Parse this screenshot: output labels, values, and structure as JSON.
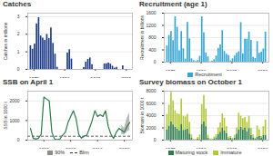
{
  "chart_data": [
    {
      "type": "bar",
      "title": "Catches",
      "ylabel": "Catches in millions",
      "color": "#1c3a87",
      "grid": true,
      "x": [
        1973,
        1974,
        1975,
        1976,
        1977,
        1978,
        1979,
        1980,
        1981,
        1982,
        1983,
        1984,
        1985,
        1986,
        1987,
        1988,
        1989,
        1990,
        1991,
        1992,
        1993,
        1994,
        1995,
        1996,
        1997,
        1998,
        1999,
        2000,
        2001,
        2002,
        2003,
        2004,
        2005,
        2006,
        2007,
        2008,
        2009,
        2010,
        2011,
        2012,
        2013,
        2014,
        2015,
        2016,
        2017,
        2018,
        2019,
        2020,
        2021
      ],
      "values": [
        1.34,
        1.15,
        1.44,
        2.59,
        2.94,
        1.9,
        1.78,
        1.65,
        1.99,
        1.76,
        2.36,
        1.48,
        0.87,
        0.12,
        0,
        0,
        0,
        0,
        0.93,
        1.12,
        0.59,
        0,
        0,
        0,
        0,
        0,
        0.11,
        0.41,
        0.57,
        0.65,
        0.27,
        0,
        0,
        0,
        0,
        0,
        0.31,
        0.32,
        0.36,
        0.3,
        0.18,
        0.07,
        0.12,
        0,
        0,
        0.2,
        0,
        0,
        0
      ],
      "xlim": [
        1972,
        2023
      ],
      "xticks": [
        1975,
        1990,
        2005,
        2020
      ],
      "ylim": [
        0,
        3.2
      ],
      "yticks": [
        0,
        1,
        2,
        3
      ]
    },
    {
      "type": "bar",
      "title": "Recruitment (age 1)",
      "ylabel": "Recruitment in billions",
      "grid": true,
      "legend": "bottom",
      "x": [
        1973,
        1974,
        1975,
        1976,
        1977,
        1978,
        1979,
        1980,
        1981,
        1982,
        1983,
        1984,
        1985,
        1986,
        1987,
        1988,
        1989,
        1990,
        1991,
        1992,
        1993,
        1994,
        1995,
        1996,
        1997,
        1998,
        1999,
        2000,
        2001,
        2002,
        2003,
        2004,
        2005,
        2006,
        2007,
        2008,
        2009,
        2010,
        2011,
        2012,
        2013,
        2014,
        2015,
        2016,
        2017,
        2018,
        2019,
        2020,
        2021
      ],
      "series": [
        {
          "name": "Recruitment",
          "color": "#35a6d6",
          "values": [
            528,
            872,
            1000,
            700,
            1480,
            1140,
            367,
            1000,
            438,
            100,
            1300,
            760,
            110,
            50,
            20,
            50,
            190,
            1480,
            960,
            300,
            170,
            10,
            30,
            80,
            200,
            450,
            560,
            1030,
            350,
            260,
            220,
            40,
            110,
            200,
            290,
            340,
            1290,
            270,
            750,
            750,
            980,
            710,
            160,
            120,
            670,
            290,
            330,
            430,
            980
          ]
        }
      ],
      "xlim": [
        1972,
        2023
      ],
      "xticks": [
        1975,
        1990,
        2005,
        2020
      ],
      "ylim": [
        0,
        1600
      ],
      "yticks": [
        0,
        400,
        800,
        1200,
        1600
      ]
    },
    {
      "type": "line",
      "title": "SSB on April 1",
      "ylabel": "SSB in 1000 t",
      "color": "#2a7a4b",
      "grid": true,
      "legend": "bottom",
      "x": [
        1985,
        1986,
        1987,
        1988,
        1989,
        1990,
        1991,
        1992,
        1993,
        1994,
        1995,
        1996,
        1997,
        1998,
        1999,
        2000,
        2001,
        2002,
        2003,
        2004,
        2005,
        2006,
        2007,
        2008,
        2009,
        2010,
        2011,
        2012,
        2013,
        2014,
        2015,
        2016,
        2017,
        2018,
        2019,
        2020,
        2021,
        2022
      ],
      "values": [
        600,
        100,
        50,
        100,
        300,
        2200,
        2100,
        2000,
        400,
        60,
        20,
        60,
        250,
        400,
        900,
        1200,
        1500,
        1100,
        300,
        100,
        200,
        250,
        600,
        1000,
        1500,
        1200,
        1300,
        1200,
        1500,
        700,
        300,
        90,
        400,
        600,
        500,
        400,
        700,
        900
      ],
      "reference_lines": [
        {
          "name": "Blim",
          "value": 200,
          "color": "#333333",
          "line_style": "dashed"
        }
      ],
      "band": {
        "name": "90%",
        "color": "#8c8c8c",
        "x": [
          2019,
          2020,
          2021,
          2022
        ],
        "lower": [
          300,
          250,
          400,
          500
        ],
        "upper": [
          750,
          600,
          1100,
          1400
        ]
      },
      "xlim": [
        1984,
        2023
      ],
      "xticks": [
        1990,
        2000,
        2010,
        2020
      ],
      "ylim": [
        0,
        2500
      ],
      "yticks": [
        0,
        1000,
        2000
      ]
    },
    {
      "type": "bar",
      "title": "Survey biomass on October 1",
      "ylabel": "Biomass in 1000 t",
      "stacked": true,
      "grid": true,
      "legend": "bottom",
      "x": [
        1973,
        1974,
        1975,
        1976,
        1977,
        1978,
        1979,
        1980,
        1981,
        1982,
        1983,
        1984,
        1985,
        1986,
        1987,
        1988,
        1989,
        1990,
        1991,
        1992,
        1993,
        1994,
        1995,
        1996,
        1997,
        1998,
        1999,
        2000,
        2001,
        2002,
        2003,
        2004,
        2005,
        2006,
        2007,
        2008,
        2009,
        2010,
        2011,
        2012,
        2013,
        2014,
        2015,
        2016,
        2017,
        2018,
        2019,
        2020,
        2021
      ],
      "series": [
        {
          "name": "Maturing stock",
          "color": "#2e7d4f",
          "values": [
            1700,
            2300,
            3000,
            2500,
            2100,
            1800,
            1500,
            2600,
            1600,
            1700,
            1800,
            1000,
            300,
            50,
            20,
            150,
            100,
            2600,
            3000,
            2200,
            300,
            100,
            60,
            200,
            400,
            900,
            1300,
            2000,
            1500,
            1100,
            200,
            300,
            100,
            350,
            1000,
            1700,
            2100,
            1700,
            2000,
            1400,
            1900,
            800,
            350,
            150,
            500,
            600,
            300,
            800,
            800
          ]
        },
        {
          "name": "Immature",
          "color": "#b3c93a",
          "values": [
            2500,
            3400,
            4800,
            3900,
            2700,
            2500,
            2700,
            4100,
            2300,
            2100,
            2400,
            1900,
            560,
            70,
            80,
            280,
            760,
            3200,
            4300,
            2900,
            500,
            100,
            130,
            300,
            500,
            1100,
            1500,
            2300,
            2100,
            1100,
            300,
            300,
            200,
            450,
            1000,
            2700,
            1800,
            1800,
            1700,
            1500,
            2000,
            1100,
            500,
            180,
            1800,
            1100,
            300,
            1400,
            2500
          ]
        }
      ],
      "xlim": [
        1972,
        2023
      ],
      "xticks": [
        1975,
        1990,
        2005,
        2020
      ],
      "ylim": [
        0,
        8000
      ],
      "yticks": [
        0,
        2000,
        4000,
        6000,
        8000
      ]
    }
  ]
}
